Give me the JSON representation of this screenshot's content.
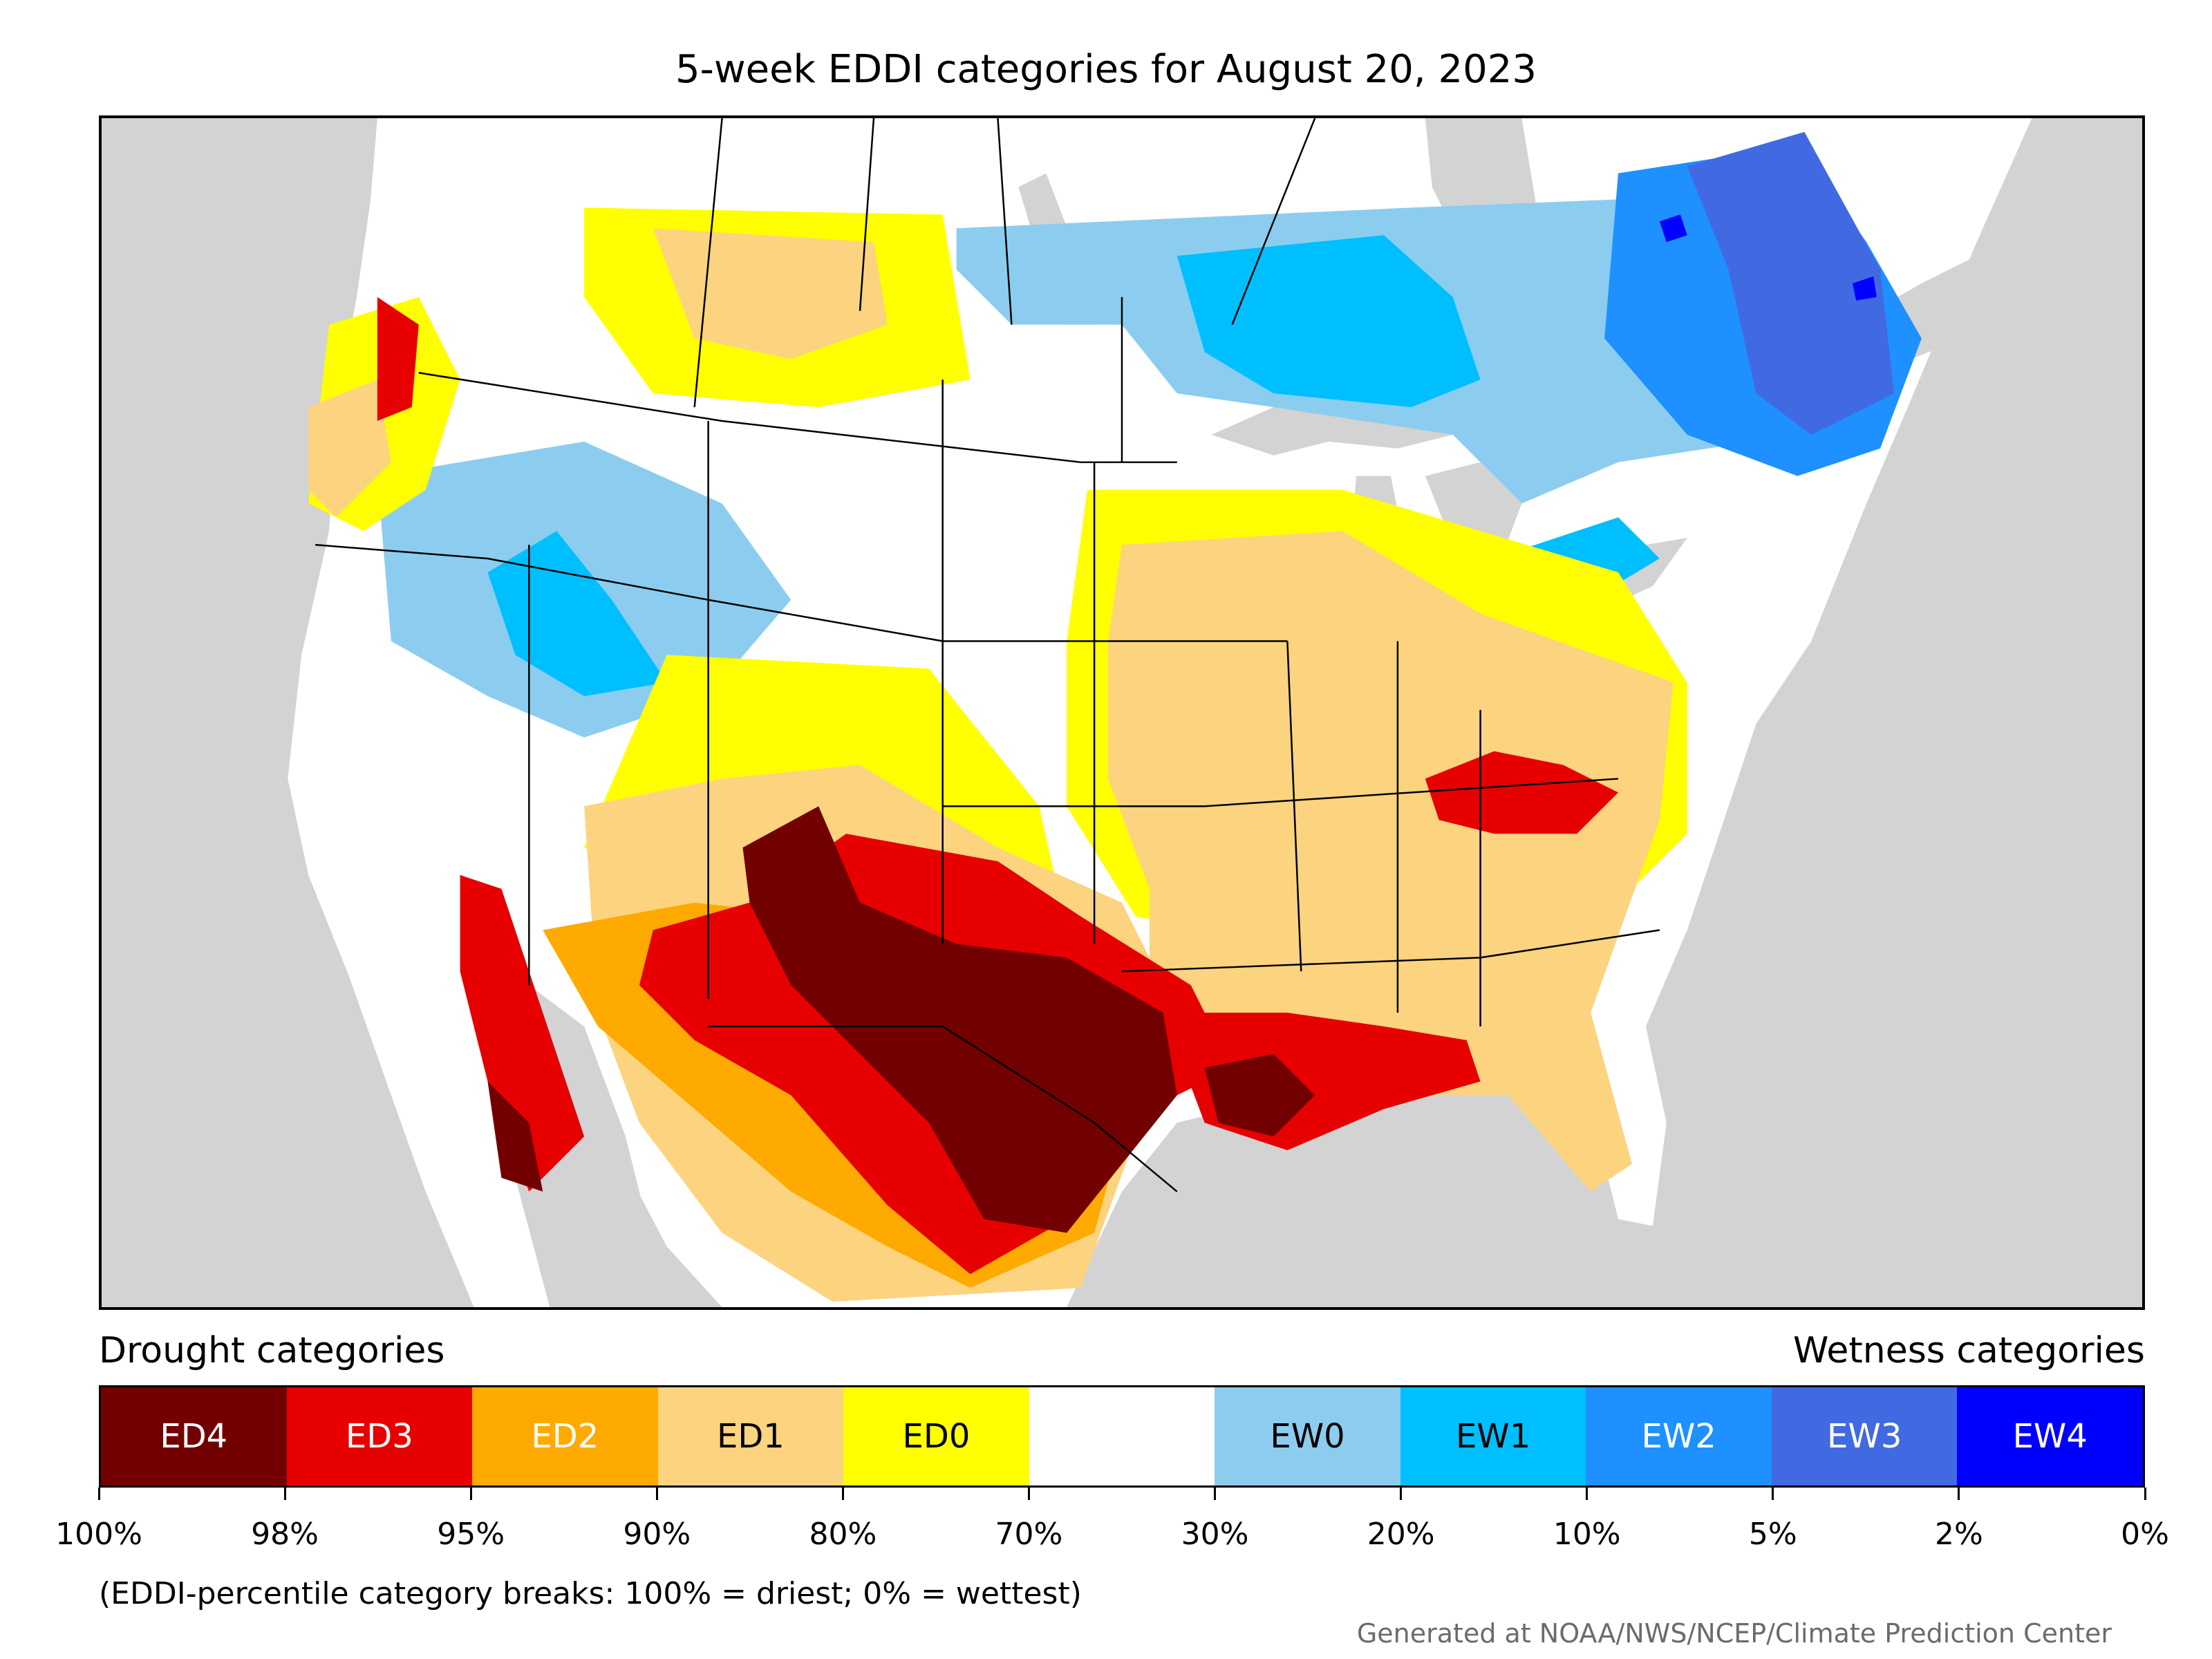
{
  "title": "5-week EDDI categories for August 20, 2023",
  "legend": {
    "drought_title": "Drought categories",
    "wetness_title": "Wetness categories",
    "categories": [
      {
        "label": "ED4",
        "color": "#730000",
        "text_color": "#ffffff"
      },
      {
        "label": "ED3",
        "color": "#e60000",
        "text_color": "#ffffff"
      },
      {
        "label": "ED2",
        "color": "#ffaa00",
        "text_color": "#ffffff"
      },
      {
        "label": "ED1",
        "color": "#fcd37f",
        "text_color": "#000000"
      },
      {
        "label": "ED0",
        "color": "#ffff00",
        "text_color": "#000000"
      },
      {
        "label": "",
        "color": "#ffffff",
        "text_color": "#000000"
      },
      {
        "label": "EW0",
        "color": "#8ccdef",
        "text_color": "#000000"
      },
      {
        "label": "EW1",
        "color": "#00bfff",
        "text_color": "#000000"
      },
      {
        "label": "EW2",
        "color": "#1e90ff",
        "text_color": "#ffffff"
      },
      {
        "label": "EW3",
        "color": "#4169e1",
        "text_color": "#ffffff"
      },
      {
        "label": "EW4",
        "color": "#0000ff",
        "text_color": "#ffffff"
      }
    ],
    "tick_labels": [
      "100%",
      "98%",
      "95%",
      "90%",
      "80%",
      "70%",
      "30%",
      "20%",
      "10%",
      "5%",
      "2%",
      "0%"
    ],
    "note": "(EDDI-percentile category breaks: 100% = driest; 0% = wettest)"
  },
  "credit": "Generated at NOAA/NWS/NCEP/Climate Prediction Center",
  "map": {
    "background_color": "#d3d3d3",
    "land_color": "#ffffff",
    "regions_shown": "contiguous United States, southern Canada, northern Mexico",
    "notable_features": [
      "ED4 (exceptional dryness) centered over Texas and New Mexico",
      "ED3 surrounding the Texas core and along the Louisiana coast",
      "EW2-EW4 (wetness) over Quebec",
      "EW0-EW1 over Ontario, Nevada, Idaho"
    ]
  }
}
